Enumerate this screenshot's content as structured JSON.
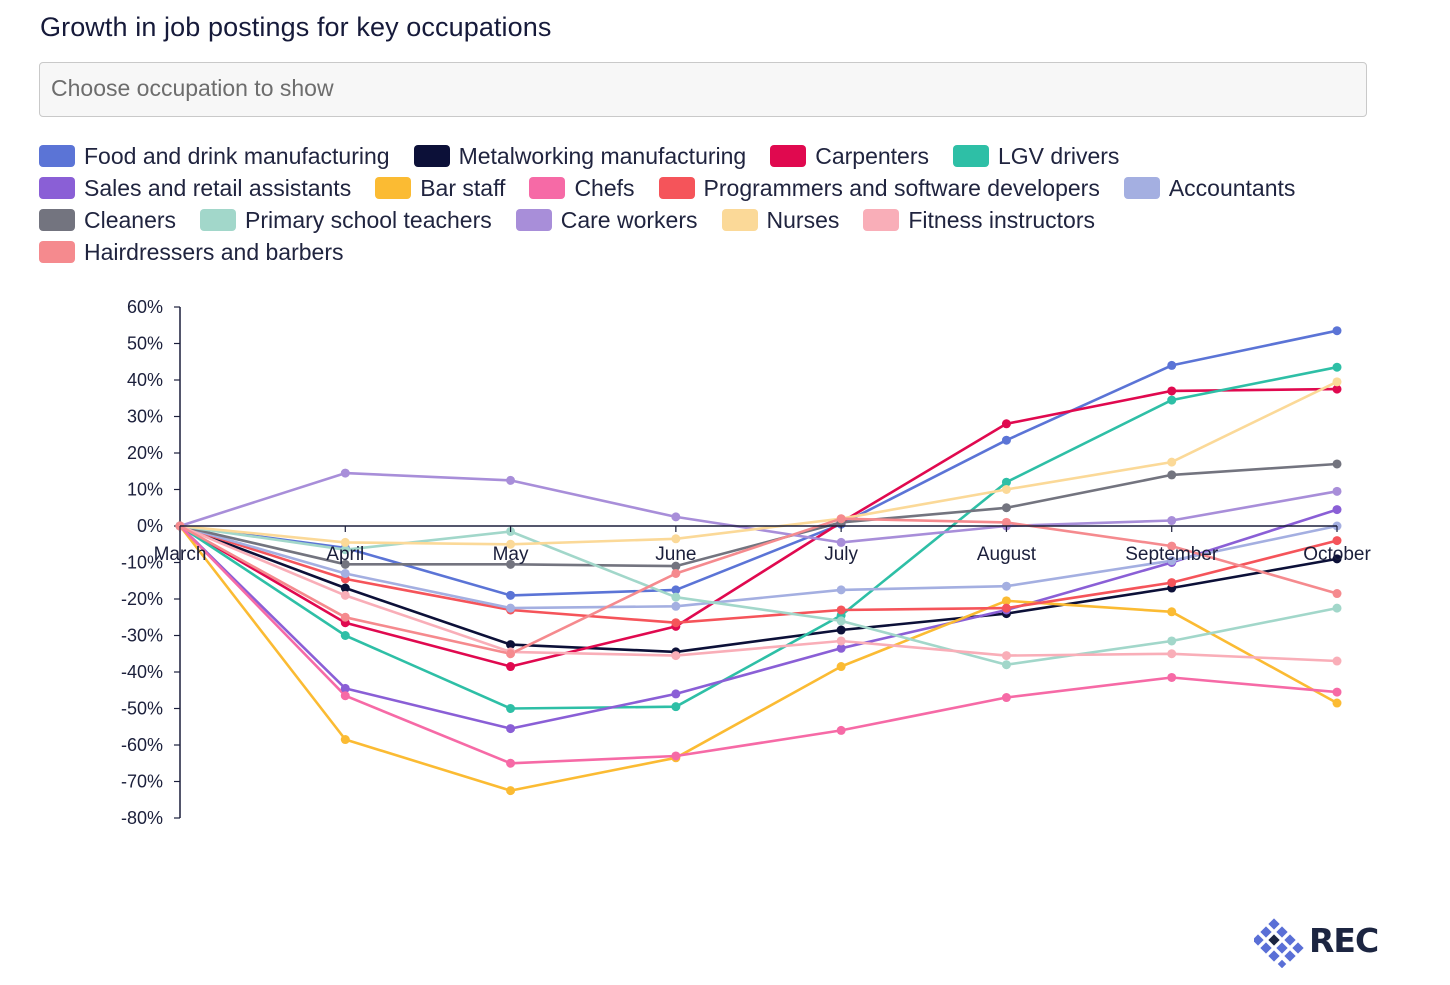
{
  "title": "Growth in job postings for key occupations",
  "selector": {
    "placeholder": "Choose occupation to show"
  },
  "logo": {
    "text": "REC",
    "color": "#1c2541",
    "accent": "#5a6fd6"
  },
  "chart_data": {
    "type": "line",
    "title": "Growth in job postings for key occupations",
    "xlabel": "",
    "ylabel": "",
    "ylim": [
      -80,
      60
    ],
    "y_ticks": [
      60,
      50,
      40,
      30,
      20,
      10,
      0,
      -10,
      -20,
      -30,
      -40,
      -50,
      -60,
      -70,
      -80
    ],
    "y_tick_labels": [
      "60%",
      "50%",
      "40%",
      "30%",
      "20%",
      "10%",
      "0%",
      "-10%",
      "-20%",
      "-30%",
      "-40%",
      "-50%",
      "-60%",
      "-70%",
      "-80%"
    ],
    "categories": [
      "March",
      "April",
      "May",
      "June",
      "July",
      "August",
      "September",
      "October"
    ],
    "series": [
      {
        "name": "Food and drink manufacturing",
        "color": "#5b74d6",
        "values": [
          0,
          -6,
          -19,
          -17.5,
          0.5,
          23.5,
          44,
          53.5
        ]
      },
      {
        "name": "Metalworking manufacturing",
        "color": "#0c1038",
        "values": [
          0,
          -17,
          -32.5,
          -34.5,
          -28.5,
          -24,
          -17,
          -9
        ]
      },
      {
        "name": "Carpenters",
        "color": "#e0094f",
        "values": [
          0,
          -26.5,
          -38.5,
          -27.5,
          1,
          28,
          37,
          37.5
        ]
      },
      {
        "name": "LGV drivers",
        "color": "#2ebfa6",
        "values": [
          0,
          -30,
          -50,
          -49.5,
          -24.5,
          12,
          34.5,
          43.5
        ]
      },
      {
        "name": "Sales and retail assistants",
        "color": "#8a5fd6",
        "values": [
          0,
          -44.5,
          -55.5,
          -46,
          -33.5,
          -23,
          -10,
          4.5
        ]
      },
      {
        "name": "Bar staff",
        "color": "#fbbb33",
        "values": [
          0,
          -58.5,
          -72.5,
          -63.5,
          -38.5,
          -20.5,
          -23.5,
          -48.5
        ]
      },
      {
        "name": "Chefs",
        "color": "#f66aa6",
        "values": [
          0,
          -46.5,
          -65,
          -63,
          -56,
          -47,
          -41.5,
          -45.5
        ]
      },
      {
        "name": "Programmers and software developers",
        "color": "#f5545a",
        "values": [
          0,
          -14.5,
          -23,
          -26.5,
          -23,
          -22.5,
          -15.5,
          -4
        ]
      },
      {
        "name": "Accountants",
        "color": "#a4afe1",
        "values": [
          0,
          -13,
          -22.5,
          -22,
          -17.5,
          -16.5,
          -9.5,
          0
        ]
      },
      {
        "name": "Cleaners",
        "color": "#73747f",
        "values": [
          0,
          -10.5,
          -10.5,
          -11,
          1,
          5,
          14,
          17
        ]
      },
      {
        "name": "Primary school teachers",
        "color": "#a2d7ca",
        "values": [
          0,
          -6.5,
          -1.5,
          -19.5,
          -26,
          -38,
          -31.5,
          -22.5
        ]
      },
      {
        "name": "Care workers",
        "color": "#a88ed9",
        "values": [
          0,
          14.5,
          12.5,
          2.5,
          -4.5,
          0,
          1.5,
          9.5
        ]
      },
      {
        "name": "Nurses",
        "color": "#fbd998",
        "values": [
          0,
          -4.5,
          -5,
          -3.5,
          2,
          10,
          17.5,
          39.5
        ]
      },
      {
        "name": "Fitness instructors",
        "color": "#f9aeb8",
        "values": [
          0,
          -19,
          -34.5,
          -35.5,
          -31.5,
          -35.5,
          -35,
          -37
        ]
      },
      {
        "name": "Hairdressers and barbers",
        "color": "#f58a8e",
        "values": [
          0,
          -25,
          -35,
          -13,
          2,
          1,
          -5.5,
          -18.5
        ]
      }
    ]
  }
}
